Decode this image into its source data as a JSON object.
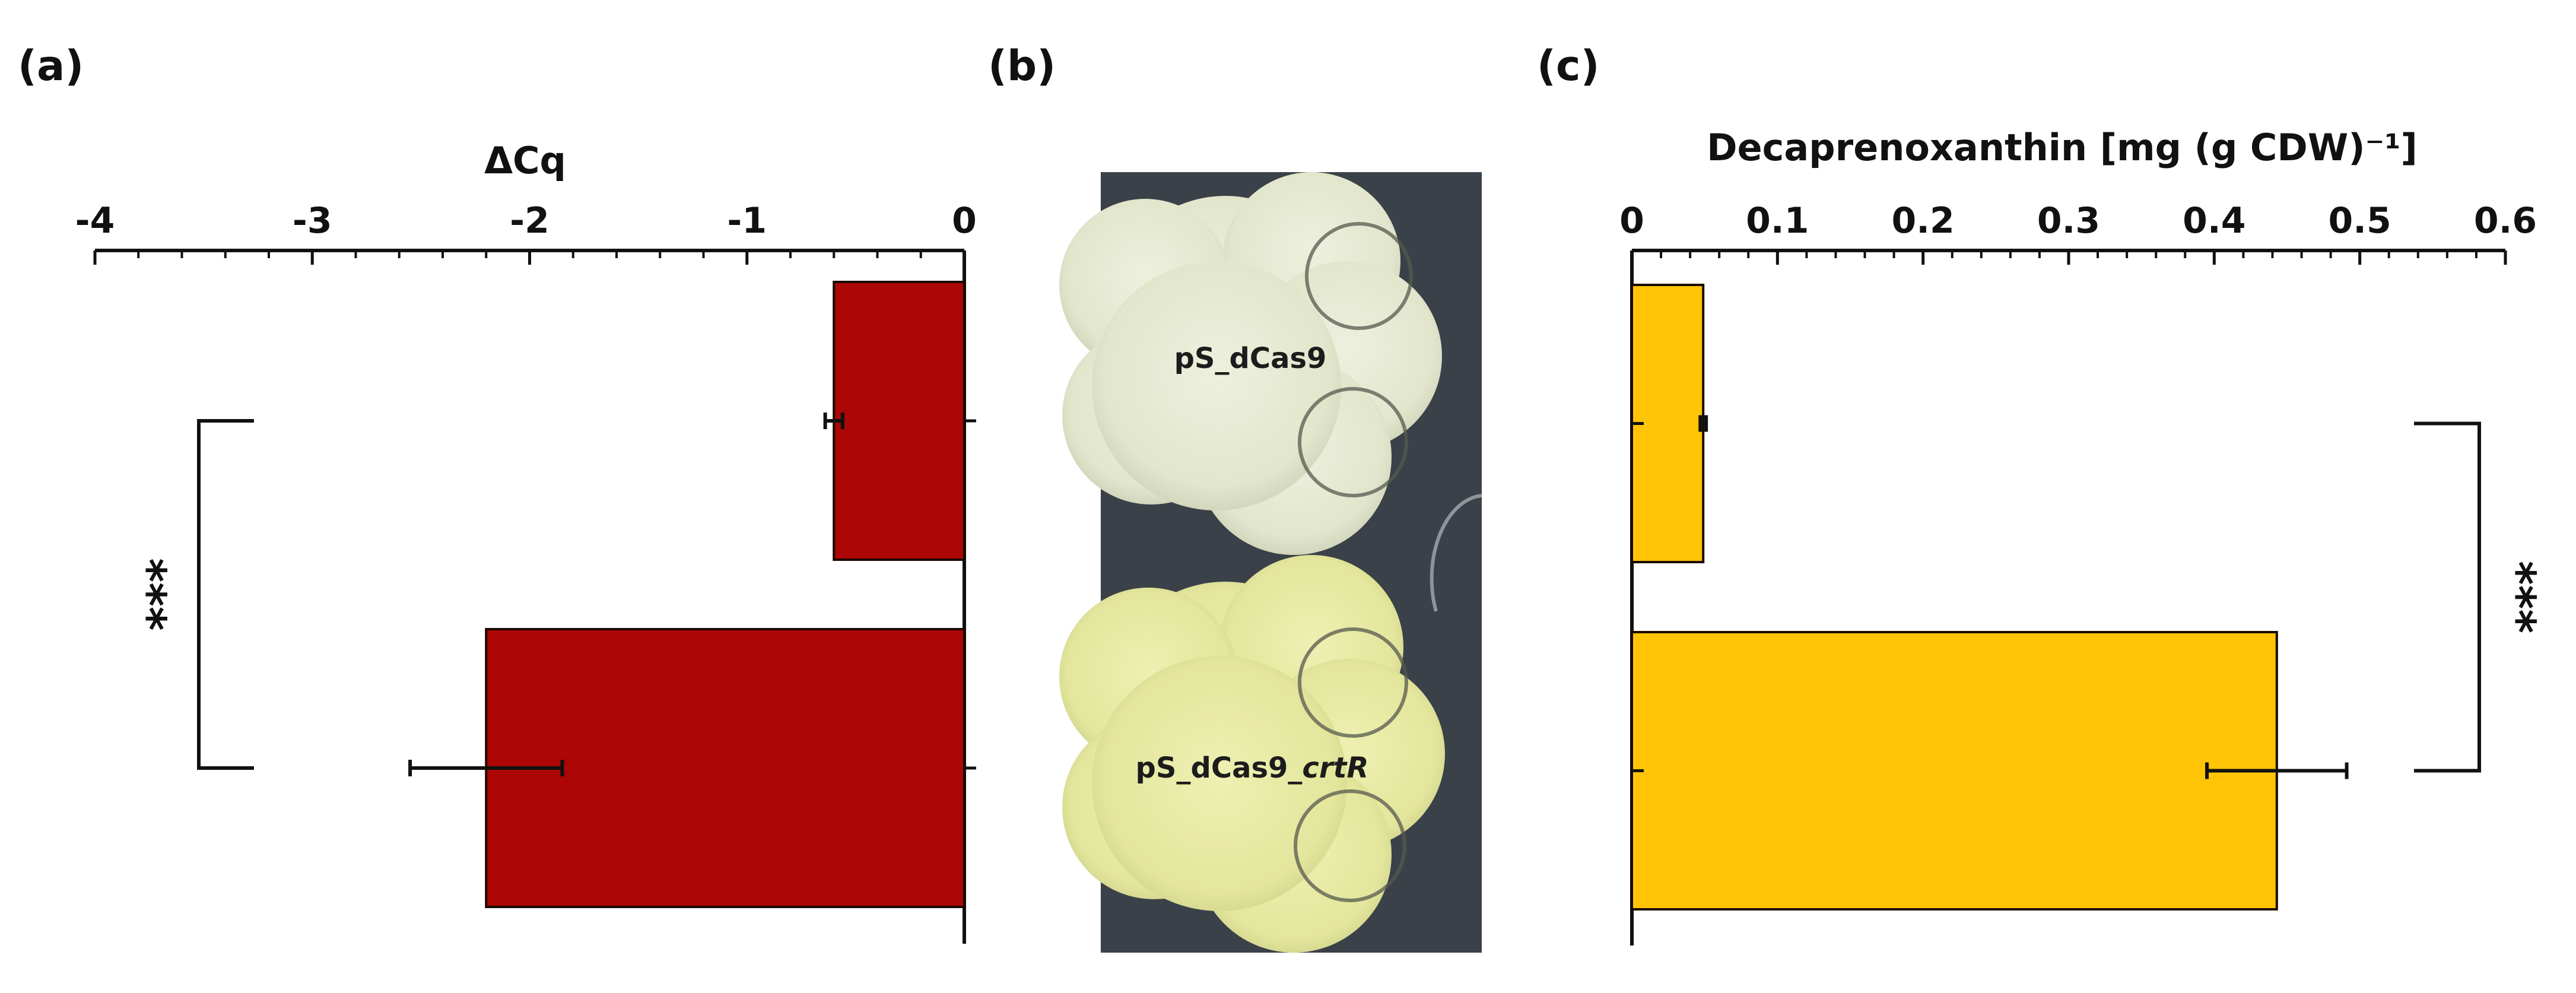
{
  "panels": {
    "a": {
      "label": "(a)"
    },
    "b": {
      "label": "(b)"
    },
    "c": {
      "label": "(c)"
    }
  },
  "colors": {
    "a_bar": "#ad0606",
    "c_bar": "#ffc405",
    "axis": "#111111",
    "plate_background": "#3b4148"
  },
  "plate": {
    "top_label": "pS_dCas9",
    "bottom_label_prefix": "pS_dCas9_",
    "bottom_label_italic": "crtR"
  },
  "chart_data": [
    {
      "panel": "a",
      "type": "bar",
      "orientation": "horizontal",
      "xlabel": "ΔCq",
      "xlim": [
        -4,
        0
      ],
      "xticks": [
        "-4",
        "-3",
        "-2",
        "-1",
        "0"
      ],
      "categories": [
        "pS_dCas9",
        "pS_dCas9_crtR"
      ],
      "values": [
        -0.6,
        -2.2
      ],
      "errors": [
        0.04,
        0.35
      ],
      "significance": "***",
      "color": "#ad0606"
    },
    {
      "panel": "c",
      "type": "bar",
      "orientation": "horizontal",
      "xlabel": "Decaprenoxanthin [mg (g CDW)⁻¹]",
      "xlim": [
        0,
        0.6
      ],
      "xticks": [
        "0",
        "0.1",
        "0.2",
        "0.3",
        "0.4",
        "0.5",
        "0.6"
      ],
      "categories": [
        "pS_dCas9",
        "pS_dCas9_crtR"
      ],
      "values": [
        0.049,
        0.443
      ],
      "errors": [
        0.002,
        0.048
      ],
      "significance": "***",
      "color": "#ffc405"
    }
  ]
}
